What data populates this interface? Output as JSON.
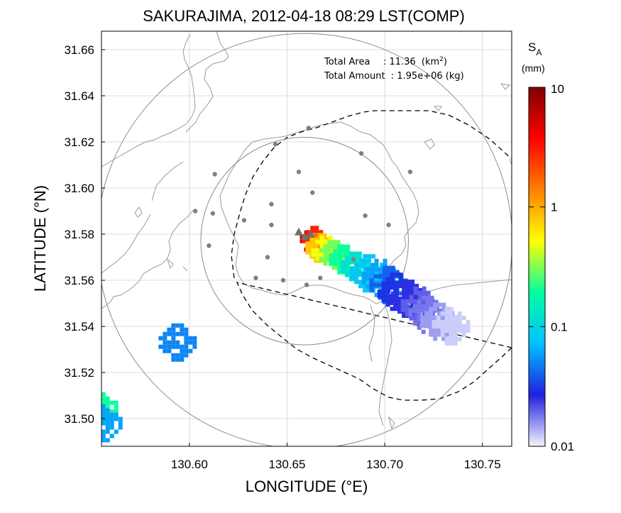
{
  "title": "SAKURAJIMA, 2012-04-18 08:29 LST(COMP)",
  "info": {
    "total_area_label": "Total Area",
    "total_area_value": ": 11.36",
    "total_area_unit_open": "(km",
    "total_area_unit_sup": "2",
    "total_area_unit_close": ")",
    "total_amount_label": "Total Amount",
    "total_amount_value": ": 1.95e+06 (kg)"
  },
  "axes": {
    "xlabel": "LONGITUDE (°E)",
    "ylabel": "LATITUDE (°N)",
    "xlim": [
      130.555,
      130.765
    ],
    "ylim": [
      31.488,
      31.668
    ],
    "xticks": [
      "130.60",
      "130.65",
      "130.70",
      "130.75"
    ],
    "yticks": [
      "31.50",
      "31.52",
      "31.54",
      "31.56",
      "31.58",
      "31.60",
      "31.62",
      "31.64",
      "31.66"
    ],
    "grid": true
  },
  "colorbar": {
    "title_main": "S",
    "title_sub": "A",
    "unit": "(mm)",
    "scale": "log",
    "range": [
      0.01,
      10
    ],
    "tick_labels": [
      "0.01",
      "0.1",
      "1",
      "10"
    ],
    "colors": [
      "#f4f4ff",
      "#2020e0",
      "#00c0ff",
      "#00ffa0",
      "#ffff00",
      "#ff8000",
      "#ff0000",
      "#800000"
    ]
  },
  "map_data": {
    "radar_rings": [
      {
        "center": [
          130.659,
          31.577
        ],
        "radius_deg_lat": 0.09
      },
      {
        "center": [
          130.659,
          31.577
        ],
        "radius_deg_lat": 0.045
      }
    ],
    "volcano_vents": [
      [
        130.656,
        31.581
      ],
      [
        130.659,
        31.579
      ],
      [
        130.662,
        31.58
      ]
    ],
    "stations": [
      [
        130.644,
        31.619
      ],
      [
        130.661,
        31.626
      ],
      [
        130.688,
        31.615
      ],
      [
        130.713,
        31.607
      ],
      [
        130.613,
        31.606
      ],
      [
        130.656,
        31.607
      ],
      [
        130.663,
        31.598
      ],
      [
        130.603,
        31.59
      ],
      [
        130.612,
        31.589
      ],
      [
        130.642,
        31.593
      ],
      [
        130.69,
        31.588
      ],
      [
        130.702,
        31.584
      ],
      [
        130.628,
        31.586
      ],
      [
        130.642,
        31.584
      ],
      [
        130.61,
        31.575
      ],
      [
        130.64,
        31.57
      ],
      [
        130.684,
        31.569
      ],
      [
        130.634,
        31.561
      ],
      [
        130.648,
        31.56
      ],
      [
        130.667,
        31.561
      ],
      [
        130.66,
        31.558
      ]
    ],
    "ash_deposit_mm": [
      [
        130.662,
        31.577,
        5.0
      ],
      [
        130.663,
        31.579,
        3.0
      ],
      [
        130.665,
        31.576,
        1.5
      ],
      [
        130.667,
        31.574,
        0.8
      ],
      [
        130.67,
        31.573,
        0.5
      ],
      [
        130.674,
        31.571,
        0.3
      ],
      [
        130.679,
        31.569,
        0.2
      ],
      [
        130.685,
        31.566,
        0.12
      ],
      [
        130.692,
        31.563,
        0.08
      ],
      [
        130.698,
        31.561,
        0.06
      ],
      [
        130.702,
        31.558,
        0.04
      ],
      [
        130.706,
        31.555,
        0.03
      ],
      [
        130.712,
        31.552,
        0.025
      ],
      [
        130.718,
        31.549,
        0.02
      ],
      [
        130.722,
        31.545,
        0.018
      ],
      [
        130.728,
        31.542,
        0.015
      ],
      [
        130.734,
        31.54,
        0.012
      ],
      [
        130.594,
        31.533,
        0.05
      ],
      [
        130.556,
        31.505,
        0.2
      ],
      [
        130.556,
        31.498,
        0.06
      ]
    ]
  }
}
